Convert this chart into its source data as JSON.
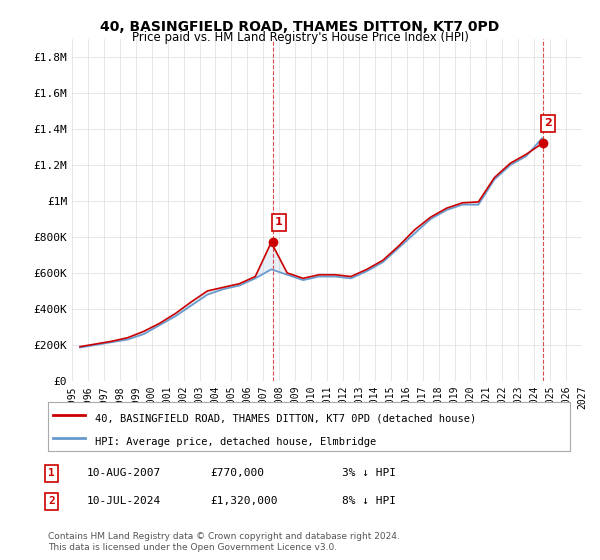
{
  "title": "40, BASINGFIELD ROAD, THAMES DITTON, KT7 0PD",
  "subtitle": "Price paid vs. HM Land Registry's House Price Index (HPI)",
  "legend_line1": "40, BASINGFIELD ROAD, THAMES DITTON, KT7 0PD (detached house)",
  "legend_line2": "HPI: Average price, detached house, Elmbridge",
  "annotation1_label": "1",
  "annotation1_date": "10-AUG-2007",
  "annotation1_value": "£770,000",
  "annotation1_hpi": "3% ↓ HPI",
  "annotation2_label": "2",
  "annotation2_date": "10-JUL-2024",
  "annotation2_value": "£1,320,000",
  "annotation2_hpi": "8% ↓ HPI",
  "footnote": "Contains HM Land Registry data © Crown copyright and database right 2024.\nThis data is licensed under the Open Government Licence v3.0.",
  "line_color_price": "#cc0000",
  "line_color_hpi": "#6699cc",
  "background_color": "#ffffff",
  "grid_color": "#dddddd",
  "ylim": [
    0,
    1900000
  ],
  "yticks": [
    0,
    200000,
    400000,
    600000,
    800000,
    1000000,
    1200000,
    1400000,
    1600000,
    1800000
  ],
  "ytick_labels": [
    "£0",
    "£200K",
    "£400K",
    "£600K",
    "£800K",
    "£1M",
    "£1.2M",
    "£1.4M",
    "£1.6M",
    "£1.8M"
  ],
  "x_start_year": 1995,
  "x_end_year": 2027,
  "xtick_years": [
    1995,
    1996,
    1997,
    1998,
    1999,
    2000,
    2001,
    2002,
    2003,
    2004,
    2005,
    2006,
    2007,
    2008,
    2009,
    2010,
    2011,
    2012,
    2013,
    2014,
    2015,
    2016,
    2017,
    2018,
    2019,
    2020,
    2021,
    2022,
    2023,
    2024,
    2025,
    2026,
    2027
  ],
  "hpi_years": [
    1995.5,
    1996.5,
    1997.5,
    1998.5,
    1999.5,
    2000.5,
    2001.5,
    2002.5,
    2003.5,
    2004.5,
    2005.5,
    2006.5,
    2007.5,
    2008.5,
    2009.5,
    2010.5,
    2011.5,
    2012.5,
    2013.5,
    2014.5,
    2015.5,
    2016.5,
    2017.5,
    2018.5,
    2019.5,
    2020.5,
    2021.5,
    2022.5,
    2023.5,
    2024.5
  ],
  "hpi_values": [
    185000,
    200000,
    215000,
    230000,
    260000,
    310000,
    360000,
    420000,
    480000,
    510000,
    530000,
    570000,
    620000,
    590000,
    560000,
    580000,
    580000,
    570000,
    610000,
    660000,
    740000,
    820000,
    900000,
    950000,
    980000,
    980000,
    1120000,
    1200000,
    1250000,
    1350000
  ],
  "price_years": [
    1995.5,
    1996.5,
    1997.5,
    1998.5,
    1999.5,
    2000.5,
    2001.5,
    2002.5,
    2003.5,
    2004.5,
    2005.5,
    2006.5,
    2007.5,
    2008.5,
    2009.5,
    2010.5,
    2011.5,
    2012.5,
    2013.5,
    2014.5,
    2015.5,
    2016.5,
    2017.5,
    2018.5,
    2019.5,
    2020.5,
    2021.5,
    2022.5,
    2023.5,
    2024.5
  ],
  "price_values": [
    190000,
    205000,
    220000,
    240000,
    275000,
    320000,
    375000,
    440000,
    500000,
    520000,
    540000,
    580000,
    770000,
    600000,
    570000,
    590000,
    590000,
    580000,
    620000,
    670000,
    750000,
    840000,
    910000,
    960000,
    990000,
    995000,
    1130000,
    1210000,
    1260000,
    1320000
  ],
  "sale1_x": 2007.64,
  "sale1_y": 770000,
  "sale2_x": 2024.53,
  "sale2_y": 1320000
}
